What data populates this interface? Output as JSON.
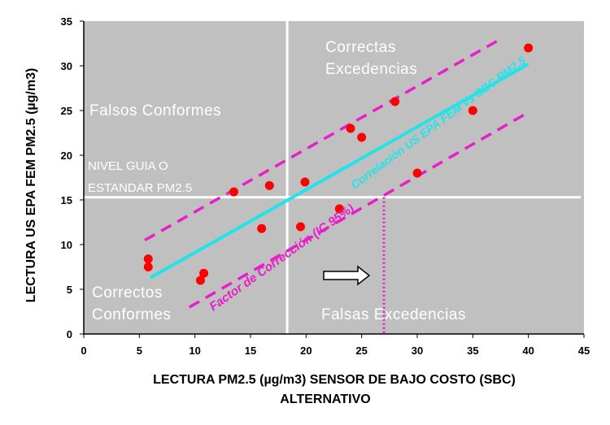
{
  "chart_data": {
    "type": "scatter",
    "xlabel_line1": "LECTURA PM2.5 (µg/m3) SENSOR DE BAJO COSTO (SBC)",
    "xlabel_line2": "ALTERNATIVO",
    "ylabel": "LECTURA US EPA FEM PM2.5 (µg/m3)",
    "xlim": [
      0,
      45
    ],
    "ylim": [
      0,
      35
    ],
    "x_ticks": [
      "0",
      "5",
      "10",
      "15",
      "20",
      "25",
      "30",
      "35",
      "40",
      "45"
    ],
    "y_ticks": [
      "0",
      "5",
      "10",
      "15",
      "20",
      "25",
      "30",
      "35"
    ],
    "grid": false,
    "plot_background": "#c0c0c0",
    "point_color": "#ff0000",
    "points": [
      {
        "x": 5.8,
        "y": 8.4
      },
      {
        "x": 5.8,
        "y": 7.5
      },
      {
        "x": 10.5,
        "y": 6.0
      },
      {
        "x": 10.8,
        "y": 6.8
      },
      {
        "x": 13.5,
        "y": 15.9
      },
      {
        "x": 16.0,
        "y": 11.8
      },
      {
        "x": 16.7,
        "y": 16.6
      },
      {
        "x": 19.5,
        "y": 12.0
      },
      {
        "x": 19.9,
        "y": 17.0
      },
      {
        "x": 23.0,
        "y": 14.0
      },
      {
        "x": 24.0,
        "y": 23.0
      },
      {
        "x": 25.0,
        "y": 22.0
      },
      {
        "x": 28.0,
        "y": 26.0
      },
      {
        "x": 30.0,
        "y": 18.0
      },
      {
        "x": 35.0,
        "y": 25.0
      },
      {
        "x": 40.0,
        "y": 32.0
      }
    ],
    "guide_lines": {
      "vertical_x": 18.3,
      "horizontal_y": 15.3,
      "dotted_x": 27.0,
      "dotted_y_top": 15.3
    },
    "correlation_line": {
      "color": "#20e4ea",
      "x": [
        6.0,
        40.0
      ],
      "y": [
        6.3,
        30.2
      ]
    },
    "upper_band": {
      "color": "#e81ec8",
      "x": [
        5.5,
        37.5
      ],
      "y": [
        10.5,
        33.0
      ]
    },
    "lower_band": {
      "color": "#e81ec8",
      "x": [
        9.5,
        40.0
      ],
      "y": [
        3.0,
        24.8
      ]
    },
    "quadrant_labels": {
      "correctas_l1": "Correctas",
      "correctas_l2": "Excedencias",
      "falsos_conformes": "Falsos Conformes",
      "nivel_l1": "NIVEL GUIA O",
      "nivel_l2": "ESTANDAR PM2.5",
      "correctos_l1": "Correctos",
      "correctos_l2": "Conformes",
      "falsas_excedencias": "Falsas Excedencias"
    },
    "annotations": {
      "correlation_text": "Correlación US EPA FEM vs SBC PM2.5",
      "correction_text": "Factor de Corrección (IC 95%)"
    }
  }
}
